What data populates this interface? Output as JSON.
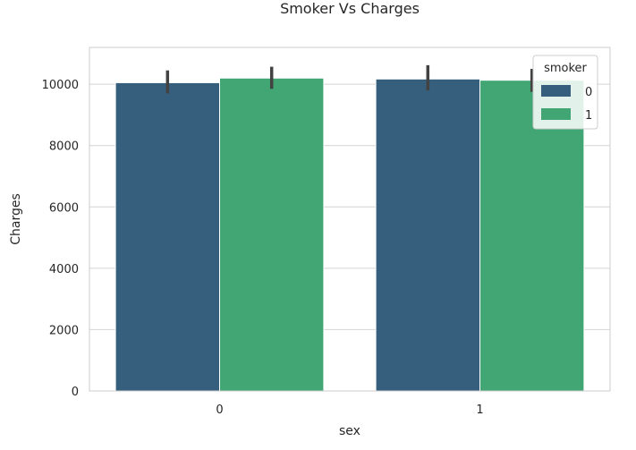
{
  "chart_data": {
    "type": "bar",
    "title": "Smoker Vs Charges",
    "xlabel": "sex",
    "ylabel": "Charges",
    "categories": [
      "0",
      "1"
    ],
    "ylim": [
      0,
      11200
    ],
    "yticks": [
      0,
      2000,
      4000,
      6000,
      8000,
      10000
    ],
    "grid": "y",
    "legend": {
      "title": "smoker",
      "placement": "top-right"
    },
    "series": [
      {
        "name": "0",
        "color": "#355f7d",
        "values": [
          10050,
          10170
        ],
        "ci": [
          [
            9700,
            10450
          ],
          [
            9800,
            10620
          ]
        ]
      },
      {
        "name": "1",
        "color": "#41a673",
        "values": [
          10200,
          10130
        ],
        "ci": [
          [
            9850,
            10570
          ],
          [
            9750,
            10500
          ]
        ]
      }
    ]
  }
}
